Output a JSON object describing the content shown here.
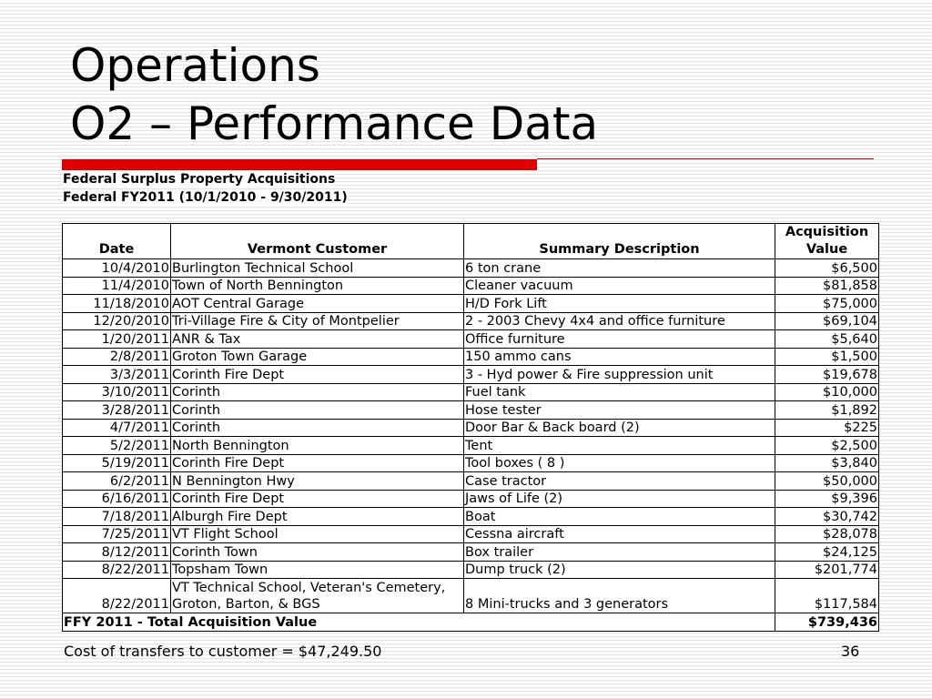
{
  "title": {
    "line1": "Operations",
    "line2": "O2 – Performance Data"
  },
  "subtitle": {
    "line1": "Federal Surplus Property Acquisitions",
    "line2": "Federal FY2011 (10/1/2010 - 9/30/2011)"
  },
  "colors": {
    "accent": "#e00000"
  },
  "table": {
    "headers": {
      "date": "Date",
      "customer": "Vermont Customer",
      "description": "Summary Description",
      "value_line1": "Acquisition",
      "value_line2": "Value"
    },
    "rows": [
      {
        "date": "10/4/2010",
        "customer": "Burlington Technical School",
        "description": "6 ton crane",
        "value": "$6,500"
      },
      {
        "date": "11/4/2010",
        "customer": "Town of North Bennington",
        "description": "Cleaner vacuum",
        "value": "$81,858"
      },
      {
        "date": "11/18/2010",
        "customer": "AOT Central Garage",
        "description": "H/D Fork Lift",
        "value": "$75,000"
      },
      {
        "date": "12/20/2010",
        "customer": "Tri-Village Fire & City of Montpelier",
        "description": "2 - 2003 Chevy 4x4 and office furniture",
        "value": "$69,104"
      },
      {
        "date": "1/20/2011",
        "customer": "ANR & Tax",
        "description": "Office furniture",
        "value": "$5,640"
      },
      {
        "date": "2/8/2011",
        "customer": "Groton Town Garage",
        "description": "150 ammo cans",
        "value": "$1,500"
      },
      {
        "date": "3/3/2011",
        "customer": "Corinth Fire Dept",
        "description": "3 - Hyd power & Fire suppression unit",
        "value": "$19,678"
      },
      {
        "date": "3/10/2011",
        "customer": "Corinth",
        "description": "Fuel tank",
        "value": "$10,000"
      },
      {
        "date": "3/28/2011",
        "customer": "Corinth",
        "description": "Hose tester",
        "value": "$1,892"
      },
      {
        "date": "4/7/2011",
        "customer": "Corinth",
        "description": "Door Bar & Back board (2)",
        "value": "$225"
      },
      {
        "date": "5/2/2011",
        "customer": "North Bennington",
        "description": "Tent",
        "value": "$2,500"
      },
      {
        "date": "5/19/2011",
        "customer": "Corinth Fire Dept",
        "description": "Tool boxes ( 8 )",
        "value": "$3,840"
      },
      {
        "date": "6/2/2011",
        "customer": "N Bennington Hwy",
        "description": "Case tractor",
        "value": "$50,000"
      },
      {
        "date": "6/16/2011",
        "customer": "Corinth Fire Dept",
        "description": "Jaws of Life (2)",
        "value": "$9,396"
      },
      {
        "date": "7/18/2011",
        "customer": "Alburgh Fire Dept",
        "description": "Boat",
        "value": "$30,742"
      },
      {
        "date": "7/25/2011",
        "customer": "VT Flight School",
        "description": "Cessna aircraft",
        "value": "$28,078"
      },
      {
        "date": "8/12/2011",
        "customer": "Corinth Town",
        "description": "Box trailer",
        "value": "$24,125"
      },
      {
        "date": "8/22/2011",
        "customer": "Topsham  Town",
        "description": "Dump truck (2)",
        "value": "$201,774"
      },
      {
        "date": "8/22/2011",
        "customer": "VT Technical School,  Veteran's Cemetery, Groton, Barton, & BGS",
        "description": "8 Mini-trucks and 3 generators",
        "value": "$117,584",
        "tall": true
      }
    ],
    "total": {
      "label": "FFY 2011 - Total Acquisition Value",
      "value": "$739,436"
    }
  },
  "footer": {
    "note": "Cost of transfers to customer = $47,249.50",
    "page_number": "36"
  }
}
